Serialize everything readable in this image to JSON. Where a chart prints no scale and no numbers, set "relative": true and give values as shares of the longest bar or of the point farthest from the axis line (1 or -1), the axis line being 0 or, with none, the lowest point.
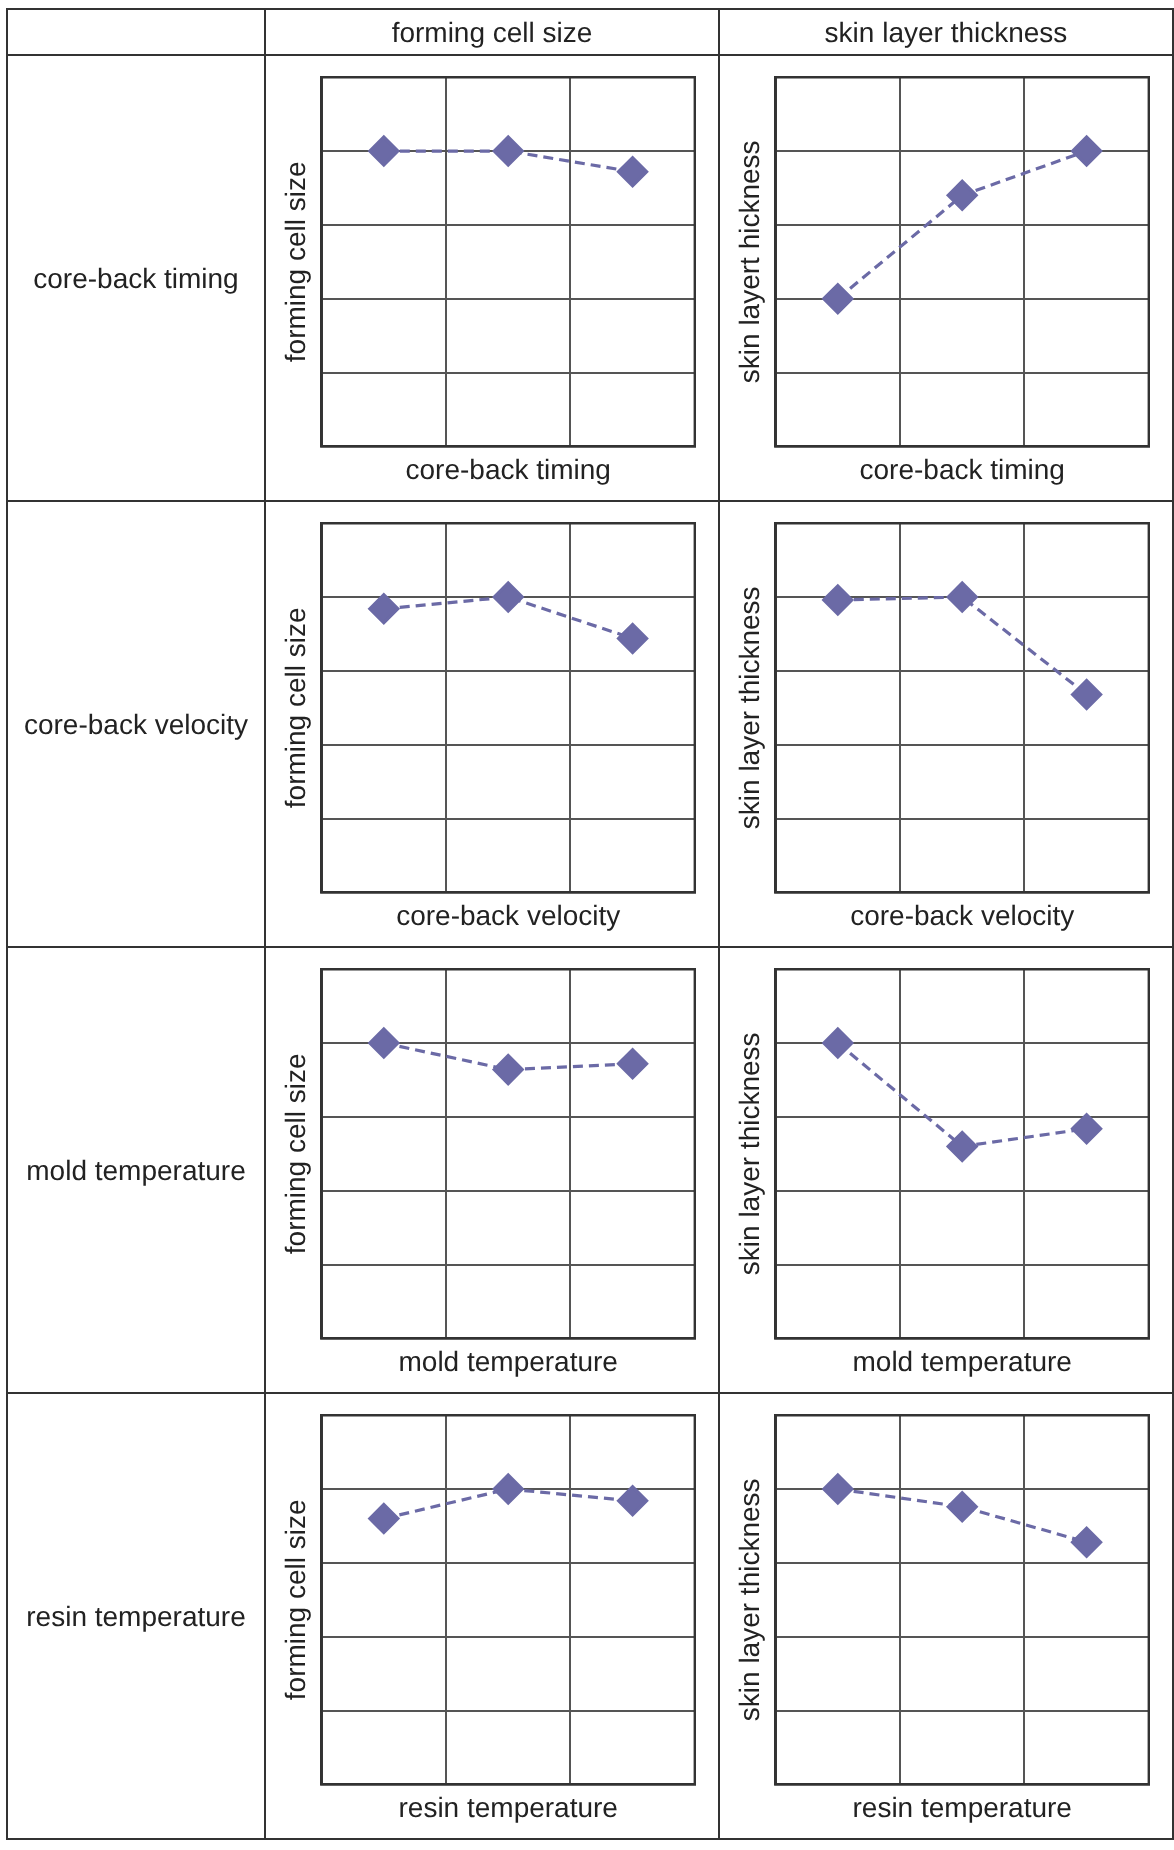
{
  "chart_data": [
    {
      "type": "line",
      "title": "forming cell size",
      "annotations": [
        "core-back timing"
      ],
      "categories": [
        null,
        null,
        null
      ],
      "relative": true,
      "grid": true,
      "tick_labels": false,
      "marker": "diamond",
      "line_style": "dashed",
      "xlabel": "core-back timing",
      "ylabel": "forming cell size",
      "color": "#6b6aa6",
      "values": [
        1,
        1,
        0.93
      ]
    },
    {
      "type": "line",
      "title": "skin layer thickness",
      "categories": [
        null,
        null,
        null
      ],
      "relative": true,
      "grid": true,
      "tick_labels": false,
      "marker": "diamond",
      "line_style": "dashed",
      "xlabel": "core-back timing",
      "ylabel": "skin layert hickness",
      "color": "#6b6aa6",
      "values": [
        0.5,
        0.85,
        1
      ]
    },
    {
      "type": "line",
      "annotations": [
        "core-back velocity"
      ],
      "categories": [
        null,
        null,
        null
      ],
      "relative": true,
      "grid": true,
      "tick_labels": false,
      "marker": "diamond",
      "line_style": "dashed",
      "xlabel": "core-back velocity",
      "ylabel": "forming cell size",
      "color": "#6b6aa6",
      "values": [
        0.96,
        1,
        0.86
      ]
    },
    {
      "type": "line",
      "categories": [
        null,
        null,
        null
      ],
      "relative": true,
      "grid": true,
      "tick_labels": false,
      "marker": "diamond",
      "line_style": "dashed",
      "xlabel": "core-back velocity",
      "ylabel": "skin layer thickness",
      "color": "#6b6aa6",
      "values": [
        0.99,
        1,
        0.67
      ]
    },
    {
      "type": "line",
      "annotations": [
        "mold temperature"
      ],
      "categories": [
        null,
        null,
        null
      ],
      "relative": true,
      "grid": true,
      "tick_labels": false,
      "marker": "diamond",
      "line_style": "dashed",
      "xlabel": "mold temperature",
      "ylabel": "forming cell size",
      "color": "#6b6aa6",
      "values": [
        1,
        0.91,
        0.93
      ]
    },
    {
      "type": "line",
      "categories": [
        null,
        null,
        null
      ],
      "relative": true,
      "grid": true,
      "tick_labels": false,
      "marker": "diamond",
      "line_style": "dashed",
      "xlabel": "mold temperature",
      "ylabel": "skin layer thickness",
      "color": "#6b6aa6",
      "values": [
        1,
        0.65,
        0.71
      ]
    },
    {
      "type": "line",
      "annotations": [
        "resin temperature"
      ],
      "categories": [
        null,
        null,
        null
      ],
      "relative": true,
      "grid": true,
      "tick_labels": false,
      "marker": "diamond",
      "line_style": "dashed",
      "xlabel": "resin temperature",
      "ylabel": "forming cell size",
      "color": "#6b6aa6",
      "values": [
        0.9,
        1,
        0.96
      ]
    },
    {
      "type": "line",
      "categories": [
        null,
        null,
        null
      ],
      "relative": true,
      "grid": true,
      "tick_labels": false,
      "marker": "diamond",
      "line_style": "dashed",
      "xlabel": "resin temperature",
      "ylabel": "skin layer thickness",
      "color": "#6b6aa6",
      "values": [
        1,
        0.94,
        0.82
      ]
    }
  ]
}
